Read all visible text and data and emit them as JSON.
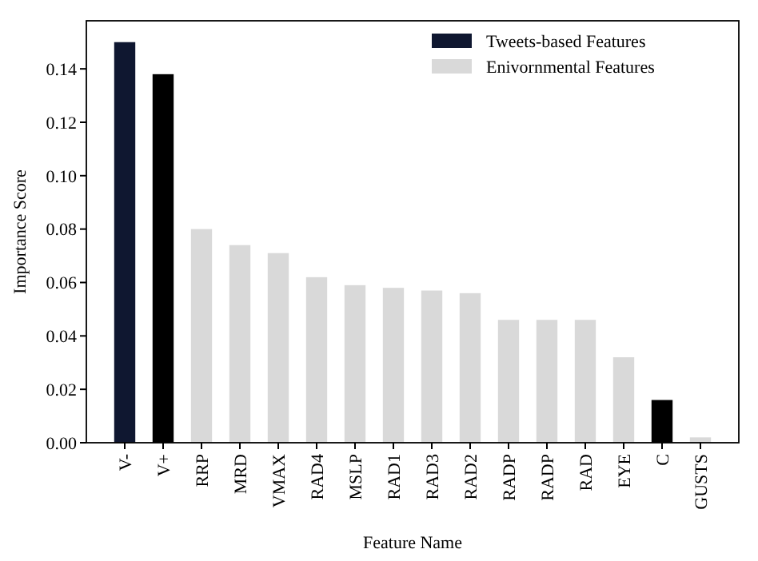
{
  "chart_data": {
    "type": "bar",
    "xlabel": "Feature Name",
    "ylabel": "Importance Score",
    "categories": [
      "V-",
      "V+",
      "RRP",
      "MRD",
      "VMAX",
      "RAD4",
      "MSLP",
      "RAD1",
      "RAD3",
      "RAD2",
      "RADP",
      "RADP",
      "RAD",
      "EYE",
      "C",
      "GUSTS"
    ],
    "series": [
      {
        "name": "Tweets-based Features",
        "color": "#0f1730",
        "colors": [
          "#0f1730",
          "#000000",
          null,
          null,
          null,
          null,
          null,
          null,
          null,
          null,
          null,
          null,
          null,
          null,
          "#000000",
          null
        ],
        "values": [
          0.15,
          0.138,
          null,
          null,
          null,
          null,
          null,
          null,
          null,
          null,
          null,
          null,
          null,
          null,
          0.016,
          null
        ]
      },
      {
        "name": "Enivornmental Features",
        "color": "#d9d9d9",
        "values": [
          null,
          null,
          0.08,
          0.074,
          0.071,
          0.062,
          0.059,
          0.058,
          0.057,
          0.056,
          0.046,
          0.046,
          0.046,
          0.032,
          null,
          0.002
        ]
      }
    ],
    "ylim": [
      0,
      0.158
    ],
    "yticks": [
      {
        "value": 0,
        "label": "0.00"
      },
      {
        "value": 0.02,
        "label": "0.02"
      },
      {
        "value": 0.04,
        "label": "0.04"
      },
      {
        "value": 0.06,
        "label": "0.06"
      },
      {
        "value": 0.08,
        "label": "0.08"
      },
      {
        "value": 0.1,
        "label": "0.10"
      },
      {
        "value": 0.12,
        "label": "0.12"
      },
      {
        "value": 0.14,
        "label": "0.14"
      }
    ],
    "legend": "top right",
    "grid": false
  }
}
